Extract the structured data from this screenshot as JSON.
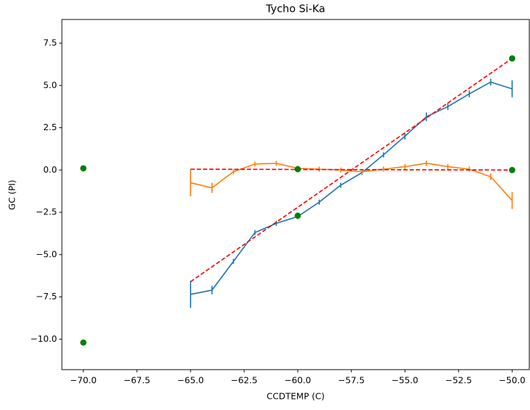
{
  "chart_data": {
    "type": "line",
    "title": "Tycho Si-Ka",
    "x_label": "CCDTEMP (C)",
    "y_label": "GC (PI)",
    "xlim": [
      -71.0,
      -49.2
    ],
    "ylim": [
      -11.8,
      8.9
    ],
    "xticks": [
      {
        "value": -70,
        "label": "−70.0"
      },
      {
        "value": -67.5,
        "label": "−67.5"
      },
      {
        "value": -65,
        "label": "−65.0"
      },
      {
        "value": -62.5,
        "label": "−62.5"
      },
      {
        "value": -60,
        "label": "−60.0"
      },
      {
        "value": -57.5,
        "label": "−57.5"
      },
      {
        "value": -55,
        "label": "−55.0"
      },
      {
        "value": -52.5,
        "label": "−52.5"
      },
      {
        "value": -50,
        "label": "−50.0"
      }
    ],
    "yticks": [
      {
        "value": -10,
        "label": "−10.0"
      },
      {
        "value": -7.5,
        "label": "−7.5"
      },
      {
        "value": -5,
        "label": "−5.0"
      },
      {
        "value": -2.5,
        "label": "−2.5"
      },
      {
        "value": 0,
        "label": "0.0"
      },
      {
        "value": 2.5,
        "label": "2.5"
      },
      {
        "value": 5,
        "label": "5.0"
      },
      {
        "value": 7.5,
        "label": "7.5"
      }
    ],
    "series": [
      {
        "color": "#1f77b4",
        "x": [
          -65,
          -64,
          -63,
          -62,
          -61,
          -60,
          -59,
          -58,
          -57,
          -56,
          -55,
          -54,
          -53,
          -52,
          -51,
          -50
        ],
        "values": [
          -7.35,
          -7.1,
          -5.4,
          -3.7,
          -3.15,
          -2.75,
          -1.9,
          -0.9,
          -0.15,
          0.9,
          2.0,
          3.15,
          3.75,
          4.5,
          5.2,
          4.8
        ],
        "errors": [
          0.8,
          0.25,
          0.15,
          0.15,
          0.15,
          0.15,
          0.15,
          0.15,
          0.15,
          0.15,
          0.2,
          0.25,
          0.2,
          0.2,
          0.2,
          0.5
        ]
      },
      {
        "color": "#ff7f0e",
        "x": [
          -65,
          -64,
          -63,
          -62,
          -61,
          -60,
          -59,
          -58,
          -57,
          -56,
          -55,
          -54,
          -53,
          -52,
          -51,
          -50
        ],
        "values": [
          -0.75,
          -1.05,
          -0.1,
          0.35,
          0.4,
          0.1,
          0.05,
          0.0,
          -0.1,
          0.05,
          0.2,
          0.4,
          0.2,
          0.05,
          -0.4,
          -1.8
        ],
        "errors": [
          0.8,
          0.3,
          0.15,
          0.15,
          0.15,
          0.15,
          0.15,
          0.15,
          0.15,
          0.15,
          0.15,
          0.15,
          0.15,
          0.15,
          0.2,
          0.5
        ]
      },
      {
        "color": "#ff0000",
        "dashed": true,
        "x": [
          -65,
          -50
        ],
        "values": [
          -6.6,
          6.6
        ]
      },
      {
        "color": "#ff0000",
        "dashed": true,
        "x": [
          -65,
          -50
        ],
        "values": [
          0.05,
          0.0
        ]
      },
      {
        "color": "#008000",
        "marker": true,
        "x": [
          -70,
          -70,
          -60,
          -60,
          -50,
          -50
        ],
        "values": [
          0.1,
          -10.2,
          0.05,
          -2.7,
          6.6,
          0.0
        ]
      }
    ]
  }
}
